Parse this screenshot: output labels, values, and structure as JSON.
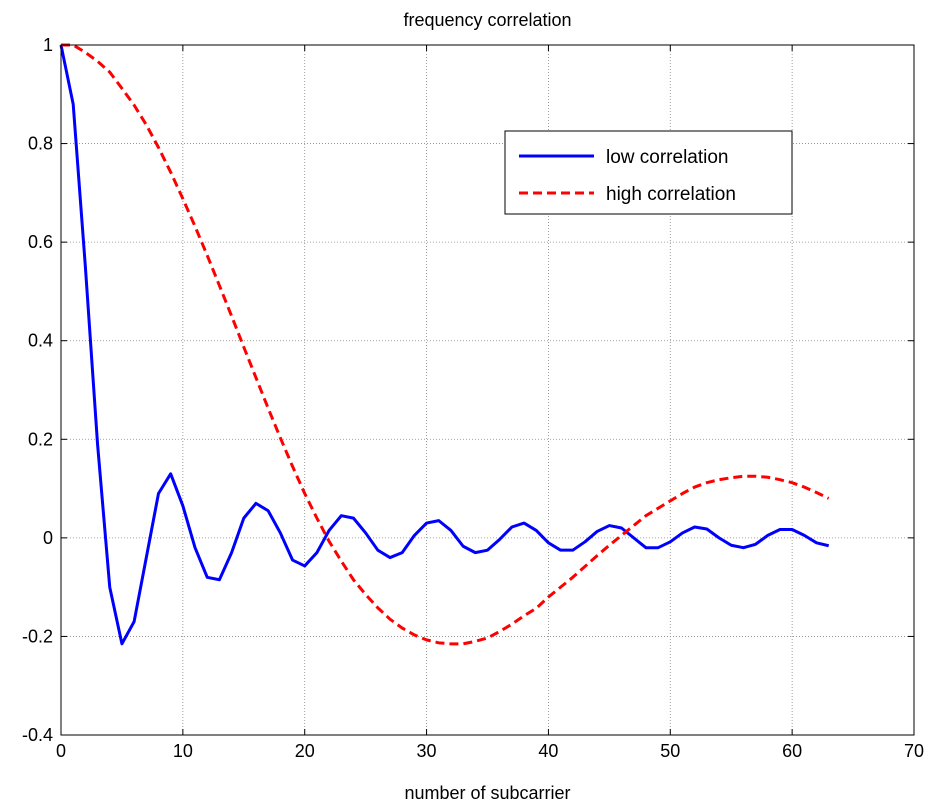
{
  "chart_data": {
    "type": "line",
    "title": "frequency correlation",
    "xlabel": "number of subcarrier",
    "ylabel": "",
    "xlim": [
      0,
      70
    ],
    "ylim": [
      -0.4,
      1
    ],
    "xticks": [
      0,
      10,
      20,
      30,
      40,
      50,
      60,
      70
    ],
    "yticks": [
      -0.4,
      -0.2,
      0,
      0.2,
      0.4,
      0.6,
      0.8,
      1
    ],
    "xtick_labels": [
      "0",
      "10",
      "20",
      "30",
      "40",
      "50",
      "60",
      "70"
    ],
    "ytick_labels": [
      "-0.4",
      "-0.2",
      "0",
      "0.2",
      "0.4",
      "0.6",
      "0.8",
      "1"
    ],
    "grid": true,
    "legend_position": "top-right",
    "series": [
      {
        "name": "low correlation",
        "color": "#0000ff",
        "style": "solid",
        "x": [
          0,
          1,
          2,
          3,
          4,
          5,
          6,
          7,
          8,
          9,
          10,
          11,
          12,
          13,
          14,
          15,
          16,
          17,
          18,
          19,
          20,
          21,
          22,
          23,
          24,
          25,
          26,
          27,
          28,
          29,
          30,
          31,
          32,
          33,
          34,
          35,
          36,
          37,
          38,
          39,
          40,
          41,
          42,
          43,
          44,
          45,
          46,
          47,
          48,
          49,
          50,
          51,
          52,
          53,
          54,
          55,
          56,
          57,
          58,
          59,
          60,
          61,
          62,
          63
        ],
        "y": [
          1.0,
          0.88,
          0.55,
          0.19,
          -0.1,
          -0.215,
          -0.17,
          -0.04,
          0.09,
          0.13,
          0.065,
          -0.02,
          -0.08,
          -0.085,
          -0.03,
          0.04,
          0.07,
          0.055,
          0.01,
          -0.045,
          -0.057,
          -0.03,
          0.015,
          0.045,
          0.04,
          0.01,
          -0.025,
          -0.04,
          -0.03,
          0.005,
          0.03,
          0.035,
          0.015,
          -0.017,
          -0.03,
          -0.025,
          -0.003,
          0.022,
          0.03,
          0.015,
          -0.01,
          -0.025,
          -0.025,
          -0.008,
          0.013,
          0.025,
          0.02,
          0.0,
          -0.02,
          -0.02,
          -0.008,
          0.01,
          0.022,
          0.018,
          0.0,
          -0.015,
          -0.02,
          -0.013,
          0.005,
          0.017,
          0.017,
          0.005,
          -0.01,
          -0.016
        ]
      },
      {
        "name": "high correlation",
        "color": "#ff0000",
        "style": "dashed",
        "x": [
          0,
          1,
          2,
          3,
          4,
          5,
          6,
          7,
          8,
          9,
          10,
          11,
          12,
          13,
          14,
          15,
          16,
          17,
          18,
          19,
          20,
          21,
          22,
          23,
          24,
          25,
          26,
          27,
          28,
          29,
          30,
          31,
          32,
          33,
          34,
          35,
          36,
          37,
          38,
          39,
          40,
          41,
          42,
          43,
          44,
          45,
          46,
          47,
          48,
          49,
          50,
          51,
          52,
          53,
          54,
          55,
          56,
          57,
          58,
          59,
          60,
          61,
          62,
          63
        ],
        "y": [
          1.0,
          1.0,
          0.985,
          0.967,
          0.945,
          0.912,
          0.878,
          0.838,
          0.792,
          0.742,
          0.688,
          0.632,
          0.573,
          0.512,
          0.45,
          0.387,
          0.325,
          0.263,
          0.203,
          0.145,
          0.09,
          0.04,
          -0.007,
          -0.047,
          -0.085,
          -0.115,
          -0.142,
          -0.165,
          -0.183,
          -0.197,
          -0.207,
          -0.213,
          -0.215,
          -0.215,
          -0.21,
          -0.203,
          -0.19,
          -0.175,
          -0.158,
          -0.143,
          -0.12,
          -0.1,
          -0.08,
          -0.058,
          -0.036,
          -0.015,
          0.005,
          0.025,
          0.045,
          0.06,
          0.075,
          0.09,
          0.103,
          0.112,
          0.118,
          0.122,
          0.125,
          0.125,
          0.123,
          0.118,
          0.112,
          0.103,
          0.092,
          0.08
        ]
      }
    ]
  }
}
